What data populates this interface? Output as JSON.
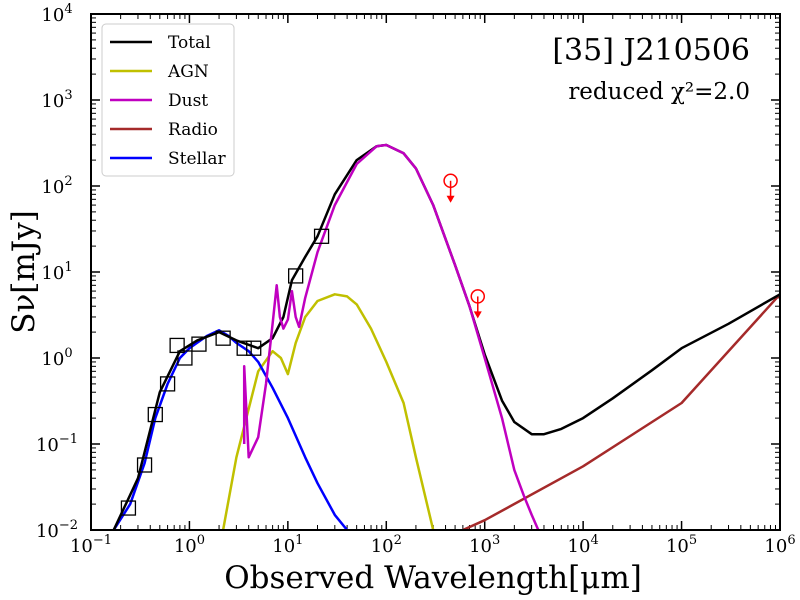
{
  "chart_data": {
    "type": "line",
    "xlabel": "Observed Wavelength[μm]",
    "ylabel": "Sν[mJy]",
    "xscale": "log",
    "yscale": "log",
    "xlim": [
      0.1,
      1000000
    ],
    "ylim": [
      0.01,
      10000
    ],
    "grid": false,
    "legend_position": "top-left",
    "annotations": {
      "line1": "[35] J210506",
      "line2": "reduced χ²=2.0"
    },
    "x_ticks": [
      {
        "base": "10",
        "exp": "−1"
      },
      {
        "base": "10",
        "exp": "0"
      },
      {
        "base": "10",
        "exp": "1"
      },
      {
        "base": "10",
        "exp": "2"
      },
      {
        "base": "10",
        "exp": "3"
      },
      {
        "base": "10",
        "exp": "4"
      },
      {
        "base": "10",
        "exp": "5"
      },
      {
        "base": "10",
        "exp": "6"
      }
    ],
    "y_ticks": [
      {
        "base": "10",
        "exp": "−2"
      },
      {
        "base": "10",
        "exp": "−1"
      },
      {
        "base": "10",
        "exp": "0"
      },
      {
        "base": "10",
        "exp": "1"
      },
      {
        "base": "10",
        "exp": "2"
      },
      {
        "base": "10",
        "exp": "3"
      },
      {
        "base": "10",
        "exp": "4"
      }
    ],
    "series": [
      {
        "name": "Total",
        "color": "#000000",
        "x": [
          0.17,
          0.3,
          0.5,
          0.8,
          1.2,
          2,
          3,
          5,
          7,
          9,
          11,
          15,
          20,
          30,
          50,
          80,
          100,
          150,
          200,
          300,
          500,
          700,
          1000,
          1500,
          2000,
          3000,
          4000,
          6000,
          10000,
          20000,
          50000,
          100000,
          300000,
          1000000
        ],
        "y": [
          0.01,
          0.04,
          0.4,
          1.2,
          1.6,
          2.0,
          1.6,
          1.3,
          1.7,
          3.0,
          8,
          15,
          26,
          80,
          200,
          290,
          300,
          240,
          160,
          60,
          12,
          4,
          1.1,
          0.32,
          0.18,
          0.13,
          0.13,
          0.15,
          0.2,
          0.34,
          0.72,
          1.3,
          2.5,
          5.5
        ]
      },
      {
        "name": "AGN",
        "color": "#c0c000",
        "x": [
          2.2,
          3,
          5,
          7,
          8.5,
          10,
          12,
          15,
          20,
          30,
          40,
          50,
          70,
          100,
          150,
          200,
          300
        ],
        "y": [
          0.01,
          0.07,
          0.7,
          1.2,
          1.0,
          0.65,
          1.5,
          3.0,
          4.6,
          5.5,
          5.2,
          4.2,
          2.2,
          0.9,
          0.3,
          0.07,
          0.01
        ]
      },
      {
        "name": "Dust",
        "color": "#c000c0",
        "x": [
          3.6,
          3.6,
          4,
          5,
          6,
          7,
          7.7,
          8.3,
          9,
          10,
          11,
          12,
          13,
          15,
          20,
          30,
          50,
          80,
          100,
          150,
          200,
          300,
          500,
          700,
          1000,
          1500,
          2000,
          2500,
          3000,
          3500
        ],
        "y": [
          0.1,
          0.8,
          0.07,
          0.12,
          0.5,
          2.5,
          7,
          3,
          2.2,
          2.8,
          6,
          3,
          2.3,
          5,
          17,
          60,
          180,
          290,
          300,
          240,
          160,
          60,
          12,
          4,
          1.0,
          0.2,
          0.05,
          0.025,
          0.015,
          0.01
        ]
      },
      {
        "name": "Radio",
        "color": "#a52a2a",
        "x": [
          600,
          1000,
          10000,
          100000,
          1000000
        ],
        "y": [
          0.01,
          0.013,
          0.055,
          0.3,
          5.5
        ]
      },
      {
        "name": "Stellar",
        "color": "#0000ff",
        "x": [
          0.17,
          0.25,
          0.35,
          0.45,
          0.6,
          0.8,
          1,
          1.5,
          2,
          2.5,
          3,
          4,
          5,
          7,
          10,
          15,
          20,
          30,
          40
        ],
        "y": [
          0.01,
          0.02,
          0.06,
          0.2,
          0.5,
          1.0,
          1.3,
          1.8,
          2.1,
          1.8,
          1.5,
          1.2,
          0.9,
          0.45,
          0.2,
          0.07,
          0.035,
          0.015,
          0.01
        ]
      }
    ],
    "observed_points": {
      "x": [
        0.24,
        0.35,
        0.45,
        0.6,
        0.75,
        0.9,
        1.25,
        2.2,
        3.6,
        4.5,
        12,
        22
      ],
      "y": [
        0.018,
        0.057,
        0.22,
        0.5,
        1.4,
        1.0,
        1.45,
        1.7,
        1.3,
        1.3,
        9,
        26
      ]
    },
    "upper_limits": {
      "color": "#ff0000",
      "x": [
        450,
        850
      ],
      "y": [
        115,
        5.2
      ]
    }
  }
}
